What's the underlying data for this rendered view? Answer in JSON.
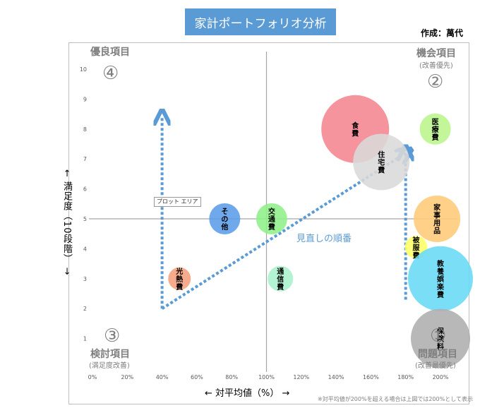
{
  "header": {
    "title": "家計ポートフォリオ分析",
    "author": "作成：萬代"
  },
  "axes": {
    "y_label": "← 満足度（10段階） →",
    "x_label": "← 対平均値（%） →"
  },
  "quadrants": {
    "q4": {
      "num": "④",
      "title": "優良項目",
      "sub": ""
    },
    "q2": {
      "num": "②",
      "title": "機会項目",
      "sub": "(改善優先)"
    },
    "q3": {
      "num": "③",
      "title": "検討項目",
      "sub": "(満足度改善)"
    },
    "q1": {
      "num": "①",
      "title": "問題項目",
      "sub": "(改善最優先)"
    }
  },
  "annotation": "見直しの順番",
  "plot_area_tooltip": "プロット エリア",
  "footnote": "※対平均値が200%を超える場合は上図では200%として表示",
  "chart_data": {
    "type": "bubble",
    "xlim": [
      0,
      200
    ],
    "ylim": [
      0,
      10
    ],
    "x_ticks": [
      "0%",
      "20%",
      "40%",
      "60%",
      "80%",
      "100%",
      "120%",
      "140%",
      "160%",
      "180%",
      "200%"
    ],
    "y_ticks": [
      "1",
      "2",
      "3",
      "4",
      "5",
      "6",
      "7",
      "8",
      "9",
      "10"
    ],
    "divider_x": 100,
    "divider_y": 5,
    "series": [
      {
        "label": "食費",
        "x": 151,
        "y": 8,
        "size": 48,
        "color": "#f4858f"
      },
      {
        "label": "住宅費",
        "x": 166,
        "y": 6.9,
        "size": 40,
        "color": "#d9d9d9"
      },
      {
        "label": "医療費",
        "x": 197,
        "y": 8,
        "size": 22,
        "color": "#b9f58a"
      },
      {
        "label": "家事用品",
        "x": 198,
        "y": 5,
        "size": 33,
        "color": "#ffc977"
      },
      {
        "label": "被服費",
        "x": 186,
        "y": 4.05,
        "size": 16,
        "color": "#ffff66"
      },
      {
        "label": "教養娯楽費",
        "x": 200,
        "y": 3,
        "size": 46,
        "color": "#66d9f5"
      },
      {
        "label": "保険料",
        "x": 200,
        "y": 1,
        "size": 42,
        "color": "#aeaeae"
      },
      {
        "label": "その他",
        "x": 76,
        "y": 5,
        "size": 22,
        "color": "#5b9ce8"
      },
      {
        "label": "交通費",
        "x": 103,
        "y": 5,
        "size": 22,
        "color": "#8ff08a"
      },
      {
        "label": "通信費",
        "x": 108,
        "y": 3,
        "size": 18,
        "color": "#a8f0cc"
      },
      {
        "label": "光熱費",
        "x": 50,
        "y": 3,
        "size": 16,
        "color": "#f5a07c"
      }
    ],
    "arrows": [
      {
        "from": [
          40,
          2
        ],
        "to": [
          40,
          8.4
        ]
      },
      {
        "from": [
          40,
          2
        ],
        "to": [
          180,
          7.2
        ]
      },
      {
        "from": [
          180,
          2.3
        ],
        "to": [
          180,
          7.2
        ]
      }
    ]
  }
}
